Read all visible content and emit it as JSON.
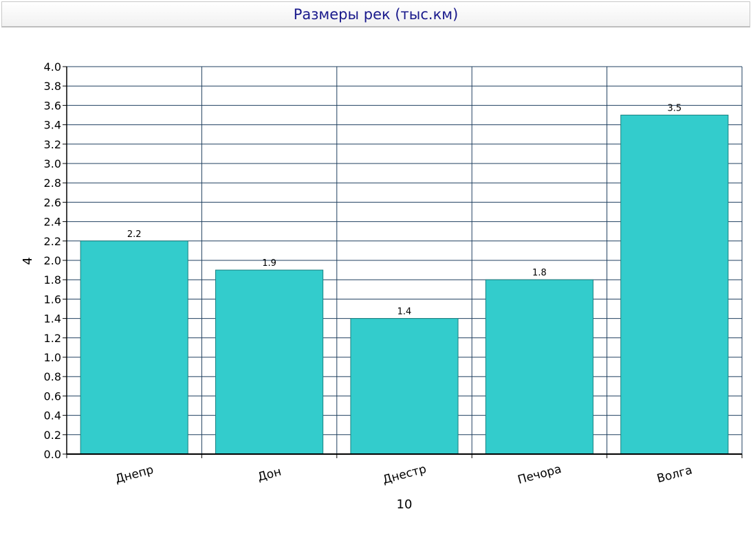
{
  "chart_data": {
    "type": "bar",
    "title": "Размеры рек (тыс.км)",
    "xlabel": "10",
    "ylabel": "4",
    "categories": [
      "Днепр",
      "Дон",
      "Днестр",
      "Печора",
      "Волга"
    ],
    "values": [
      2.2,
      1.9,
      1.4,
      1.8,
      3.5
    ],
    "data_labels": [
      "2.2",
      "1.9",
      "1.4",
      "1.8",
      "3.5"
    ],
    "ylim": [
      0,
      4.0
    ],
    "ytick_step": 0.2,
    "yticks": [
      "0.0",
      "0.2",
      "0.4",
      "0.6",
      "0.8",
      "1.0",
      "1.2",
      "1.4",
      "1.6",
      "1.8",
      "2.0",
      "2.2",
      "2.4",
      "2.6",
      "2.8",
      "3.0",
      "3.2",
      "3.4",
      "3.6",
      "3.8",
      "4.0"
    ],
    "grid": true,
    "legend": "none",
    "colors": {
      "bar_fill": "#33cccc",
      "bar_stroke": "#1a8080",
      "grid": "#1f3f5f",
      "title_text": "#1a1a8c"
    }
  }
}
